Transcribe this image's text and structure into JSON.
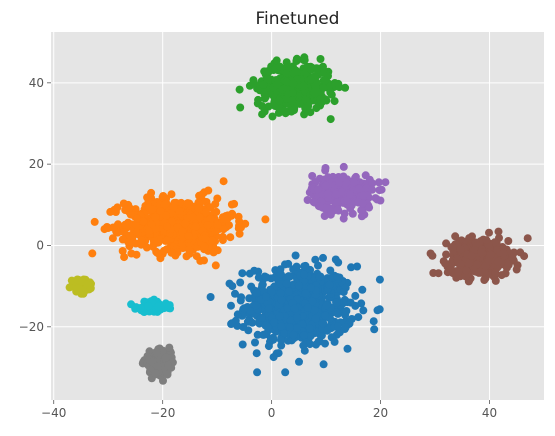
{
  "chart_data": {
    "type": "scatter",
    "title": "Finetuned",
    "xlabel": "",
    "ylabel": "",
    "xlim": [
      -40.5,
      50
    ],
    "ylim": [
      -38,
      52.5
    ],
    "grid": true,
    "x_ticks": [
      -40,
      -20,
      0,
      20,
      40
    ],
    "y_ticks": [
      -20,
      0,
      20,
      40
    ],
    "x_tick_labels": [
      "−40",
      "−20",
      "0",
      "20",
      "40"
    ],
    "y_tick_labels": [
      "−20",
      "0",
      "20",
      "40"
    ],
    "background_color": "#e5e5e5",
    "grid_color": "#ffffff",
    "clusters": [
      {
        "color": "#1f77b4",
        "center": [
          5,
          -15
        ],
        "spread": [
          9,
          9
        ],
        "count": 650
      },
      {
        "color": "#ff7f0e",
        "center": [
          -17,
          5
        ],
        "spread": [
          9,
          6
        ],
        "count": 650
      },
      {
        "color": "#2ca02c",
        "center": [
          4,
          39
        ],
        "spread": [
          6,
          5
        ],
        "count": 420
      },
      {
        "color": "#9467bd",
        "center": [
          13,
          13
        ],
        "spread": [
          5,
          4
        ],
        "count": 320
      },
      {
        "color": "#8c564b",
        "center": [
          38,
          -3
        ],
        "spread": [
          5,
          4
        ],
        "count": 470
      },
      {
        "color": "#bcbd22",
        "center": [
          -35,
          -10
        ],
        "spread": [
          1.5,
          1.4
        ],
        "count": 90
      },
      {
        "color": "#17becf",
        "center": [
          -22,
          -15
        ],
        "spread": [
          2.5,
          1.2
        ],
        "count": 110
      },
      {
        "color": "#7f7f7f",
        "center": [
          -21,
          -29
        ],
        "spread": [
          2.2,
          2.5
        ],
        "count": 160
      }
    ]
  }
}
